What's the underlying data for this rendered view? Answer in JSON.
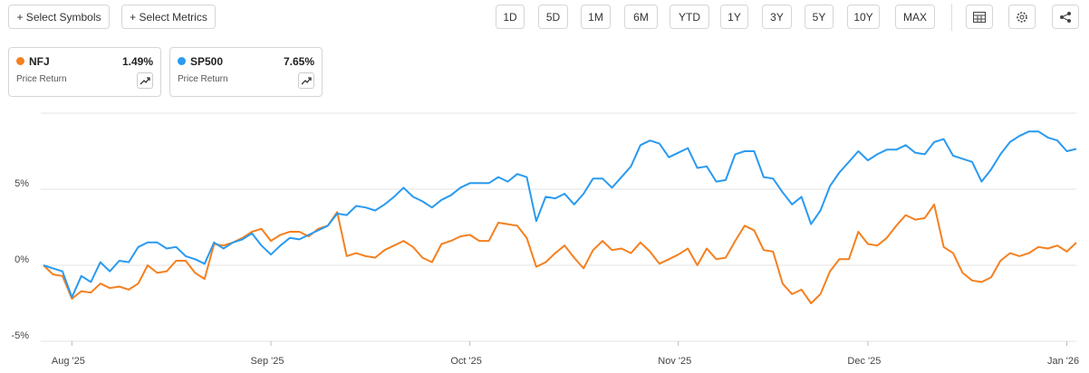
{
  "toolbar": {
    "symbols_button": "+ Select Symbols",
    "metrics_button": "+ Select Metrics",
    "periods": [
      "1D",
      "5D",
      "1M",
      "6M",
      "YTD",
      "1Y",
      "3Y",
      "5Y",
      "10Y",
      "MAX"
    ]
  },
  "chart_data": {
    "type": "line",
    "categories": [
      null,
      null,
      null,
      "Aug '25",
      null,
      null,
      null,
      null,
      null,
      null,
      null,
      null,
      null,
      null,
      null,
      null,
      null,
      null,
      null,
      null,
      null,
      null,
      null,
      null,
      "Sep '25",
      null,
      null,
      null,
      null,
      null,
      null,
      null,
      null,
      null,
      null,
      null,
      null,
      null,
      null,
      null,
      null,
      null,
      null,
      null,
      null,
      "Oct '25",
      null,
      null,
      null,
      null,
      null,
      null,
      null,
      null,
      null,
      null,
      null,
      null,
      null,
      null,
      null,
      null,
      null,
      null,
      null,
      null,
      null,
      "Nov '25",
      null,
      null,
      null,
      null,
      null,
      null,
      null,
      null,
      null,
      null,
      null,
      null,
      null,
      null,
      null,
      null,
      null,
      null,
      null,
      "Dec '25",
      null,
      null,
      null,
      null,
      null,
      null,
      null,
      null,
      null,
      null,
      null,
      null,
      null,
      null,
      null,
      null,
      null,
      null,
      null,
      null,
      "Jan '26",
      null
    ],
    "series": [
      {
        "name": "NFJ",
        "color": "#f5801f",
        "summary": {
          "label": "Price Return",
          "value": "1.49%"
        },
        "values": [
          0,
          -0.6,
          -0.7,
          -2.2,
          -1.7,
          -1.8,
          -1.2,
          -1.5,
          -1.4,
          -1.6,
          -1.2,
          0.0,
          -0.5,
          -0.4,
          0.3,
          0.3,
          -0.5,
          -0.9,
          1.4,
          1.3,
          1.5,
          1.8,
          2.2,
          2.4,
          1.6,
          2.0,
          2.2,
          2.2,
          1.9,
          2.4,
          2.6,
          3.5,
          0.6,
          0.8,
          0.6,
          0.5,
          1.0,
          1.3,
          1.6,
          1.2,
          0.5,
          0.2,
          1.4,
          1.6,
          1.9,
          2.0,
          1.6,
          1.6,
          2.8,
          2.7,
          2.6,
          1.8,
          -0.1,
          0.2,
          0.8,
          1.3,
          0.5,
          -0.2,
          1.0,
          1.6,
          1.0,
          1.1,
          0.8,
          1.5,
          0.9,
          0.1,
          0.4,
          0.7,
          1.1,
          0.0,
          1.1,
          0.4,
          0.5,
          1.6,
          2.6,
          2.3,
          1.0,
          0.9,
          -1.2,
          -1.9,
          -1.6,
          -2.5,
          -1.9,
          -0.4,
          0.4,
          0.4,
          2.2,
          1.4,
          1.3,
          1.8,
          2.6,
          3.3,
          3.0,
          3.1,
          4.0,
          1.2,
          0.8,
          -0.5,
          -1.0,
          -1.1,
          -0.8,
          0.3,
          0.8,
          0.6,
          0.8,
          1.2,
          1.1,
          1.3,
          0.9,
          1.49
        ]
      },
      {
        "name": "SP500",
        "color": "#2a9af0",
        "summary": {
          "label": "Price Return",
          "value": "7.65%"
        },
        "values": [
          0,
          -0.2,
          -0.4,
          -2.1,
          -0.7,
          -1.1,
          0.2,
          -0.4,
          0.3,
          0.2,
          1.2,
          1.5,
          1.5,
          1.1,
          1.2,
          0.6,
          0.4,
          0.1,
          1.5,
          1.1,
          1.5,
          1.7,
          2.1,
          1.3,
          0.7,
          1.3,
          1.8,
          1.7,
          2.0,
          2.3,
          2.6,
          3.4,
          3.3,
          3.9,
          3.8,
          3.6,
          4.0,
          4.5,
          5.1,
          4.5,
          4.2,
          3.8,
          4.3,
          4.6,
          5.1,
          5.4,
          5.4,
          5.4,
          5.8,
          5.5,
          6.0,
          5.8,
          2.9,
          4.5,
          4.4,
          4.7,
          4.0,
          4.7,
          5.7,
          5.7,
          5.1,
          5.8,
          6.5,
          7.9,
          8.2,
          8.0,
          7.1,
          7.4,
          7.7,
          6.4,
          6.5,
          5.5,
          5.6,
          7.3,
          7.5,
          7.5,
          5.8,
          5.7,
          4.8,
          4.0,
          4.5,
          2.7,
          3.6,
          5.2,
          6.1,
          6.8,
          7.5,
          6.9,
          7.3,
          7.6,
          7.6,
          7.9,
          7.4,
          7.3,
          8.1,
          8.3,
          7.2,
          7.0,
          6.8,
          5.5,
          6.3,
          7.3,
          8.1,
          8.5,
          8.8,
          8.8,
          8.4,
          8.2,
          7.5,
          7.65
        ]
      }
    ],
    "ylim": [
      -5,
      10
    ],
    "yticks": [
      {
        "value": 5,
        "label": "5%"
      },
      {
        "value": 0,
        "label": "0%"
      },
      {
        "value": -5,
        "label": "-5%"
      }
    ],
    "grid": true
  }
}
